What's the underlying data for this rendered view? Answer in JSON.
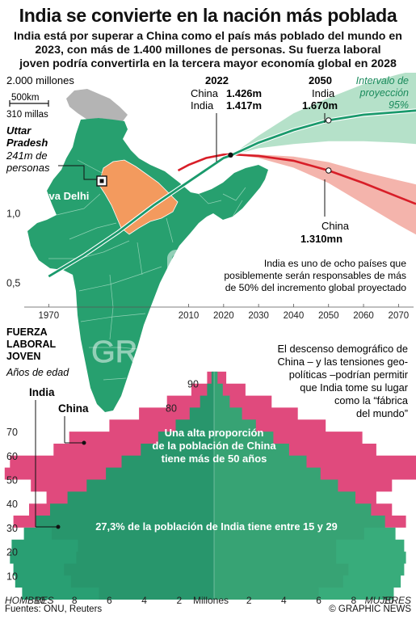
{
  "title": "India se convierte en la nación más poblada",
  "subtitle_lines": [
    "India está por superar a China como el país más poblado del mundo en",
    "2023, con más de 1.400 millones de personas. Su fuerza laboral",
    "joven podría convertirla en la tercera mayor economía global en 2028"
  ],
  "map": {
    "scale_km": "500km",
    "scale_mi": "310 millas",
    "region_name": "Uttar",
    "region_name2": "Pradesh",
    "region_pop1": "241m de",
    "region_pop2": "personas",
    "capital": "Nueva Delhi",
    "watermark": "GRAPHIC NEWS"
  },
  "colors": {
    "india": "#1a9a6c",
    "china": "#d81e28",
    "china_pyramid": "#e04a7d",
    "uttar_pradesh": "#f39a5e",
    "map_fill": "#27a06f"
  },
  "notes": {
    "year_2022": "2022",
    "china_2022_label": "China",
    "china_2022_value": "1.426m",
    "india_2022_label": "India",
    "india_2022_value": "1.417m",
    "year_2050": "2050",
    "india_2050_label": "India",
    "india_2050_value": "1.670m",
    "interval1": "Intervalo de",
    "interval2": "proyección",
    "interval3": "95%",
    "china_2050_label": "China",
    "china_2050_value": "1.310mn",
    "ocho_lines": [
      "India es uno de ocho países que",
      "posiblemente serán responsables de más",
      "de 50% del incremento global proyectado"
    ],
    "fuerza1": "FUERZA",
    "fuerza2": "LABORAL",
    "fuerza3": "JOVEN",
    "edad": "Años de edad",
    "pyr_india": "India",
    "pyr_china": "China",
    "descenso_lines": [
      "El descenso demográfico de",
      "China – y las tensiones geo-",
      "políticas –podrían permitir",
      "que India tome su lugar",
      "como la “fábrica",
      "del mundo”"
    ],
    "china_50_lines": [
      "Una alta proporción",
      "de la población de China",
      "tiene más de 50 años"
    ],
    "india_1529": "27,3% de la población de India tiene entre 15 y 29"
  },
  "footer": {
    "source": "Fuentes: ONU, Reuters",
    "brand": "© GRAPHIC NEWS"
  },
  "chart_data": [
    {
      "type": "line",
      "title": "",
      "xlabel": "",
      "ylabel": "",
      "y_top_label": "2.000 millones",
      "x_ticks": [
        1970,
        2010,
        2020,
        2030,
        2040,
        2050,
        2060,
        2070
      ],
      "y_ticks": [
        {
          "value": 1.0,
          "label": "1,0"
        },
        {
          "value": 0.5,
          "label": "0,5"
        }
      ],
      "xlim": [
        1963,
        2075
      ],
      "ylim": [
        0.33,
        2.0
      ],
      "series": [
        {
          "name": "India",
          "x": [
            1970,
            1980,
            1990,
            2000,
            2010,
            2020,
            2022,
            2030,
            2040,
            2050,
            2060,
            2070,
            2075
          ],
          "y": [
            0.55,
            0.7,
            0.87,
            1.06,
            1.23,
            1.4,
            1.417,
            1.51,
            1.6,
            1.67,
            1.71,
            1.73,
            1.74
          ],
          "band_low": [
            null,
            null,
            null,
            null,
            null,
            null,
            1.417,
            1.47,
            1.5,
            1.52,
            1.52,
            1.51,
            1.5
          ],
          "band_high": [
            null,
            null,
            null,
            null,
            null,
            null,
            1.417,
            1.56,
            1.72,
            1.83,
            1.93,
            2.0,
            2.03
          ]
        },
        {
          "name": "China",
          "x": [
            2007,
            2010,
            2015,
            2020,
            2022,
            2030,
            2040,
            2050,
            2060,
            2070,
            2075
          ],
          "y": [
            1.31,
            1.35,
            1.4,
            1.424,
            1.426,
            1.415,
            1.38,
            1.31,
            1.22,
            1.12,
            1.07
          ],
          "band_low": [
            null,
            null,
            null,
            null,
            1.426,
            1.4,
            1.33,
            1.22,
            1.07,
            0.92,
            0.85
          ],
          "band_high": [
            null,
            null,
            null,
            null,
            1.426,
            1.425,
            1.41,
            1.37,
            1.3,
            1.24,
            1.21
          ]
        }
      ]
    },
    {
      "type": "bar",
      "title": "",
      "xlabel": "Millones",
      "left_label": "HOMBRES",
      "right_label": "MUJERES",
      "x_ticks_left": [
        10,
        8,
        6,
        4,
        2
      ],
      "x_ticks_right": [
        2,
        4,
        6,
        8,
        10
      ],
      "y_ticks": [
        10,
        20,
        30,
        40,
        50,
        60,
        70,
        80,
        90
      ],
      "ylim": [
        0,
        100
      ],
      "xlim": [
        0,
        11
      ],
      "series": [
        {
          "name": "India",
          "ages": [
            0,
            5,
            10,
            15,
            20,
            25,
            30,
            35,
            40,
            45,
            50,
            55,
            60,
            65,
            70,
            75,
            80,
            85,
            90
          ],
          "male": [
            11.0,
            11.4,
            11.5,
            11.7,
            11.6,
            10.9,
            10.2,
            9.4,
            8.4,
            7.3,
            6.2,
            5.3,
            4.2,
            3.2,
            2.2,
            1.4,
            0.8,
            0.4,
            0.15
          ],
          "female": [
            10.3,
            10.7,
            10.9,
            11.0,
            10.9,
            10.4,
            9.8,
            9.0,
            8.1,
            7.1,
            6.1,
            5.3,
            4.3,
            3.4,
            2.4,
            1.6,
            0.9,
            0.5,
            0.2
          ]
        },
        {
          "name": "China",
          "ages": [
            0,
            5,
            10,
            15,
            20,
            25,
            30,
            35,
            40,
            45,
            50,
            55,
            60,
            65,
            70,
            75,
            80,
            85,
            90
          ],
          "male": [
            6.6,
            8.2,
            8.6,
            7.9,
            7.8,
            9.3,
            11.5,
            10.6,
            9.6,
            10.5,
            12.0,
            11.7,
            9.2,
            8.3,
            6.0,
            4.3,
            2.7,
            1.3,
            0.4
          ],
          "female": [
            6.0,
            7.4,
            7.7,
            7.0,
            7.0,
            8.6,
            11.0,
            10.2,
            9.3,
            10.2,
            11.8,
            11.6,
            9.3,
            8.5,
            6.4,
            4.8,
            3.3,
            1.8,
            0.7
          ]
        }
      ]
    }
  ]
}
